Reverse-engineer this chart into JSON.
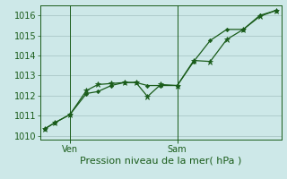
{
  "xlabel": "Pression niveau de la mer( hPa )",
  "background_color": "#cde8e8",
  "grid_color": "#b0cccc",
  "line_color": "#1a5c1a",
  "ylim": [
    1009.8,
    1016.5
  ],
  "ytick_values": [
    1010,
    1011,
    1012,
    1013,
    1014,
    1015,
    1016
  ],
  "xlim": [
    -0.3,
    14.3
  ],
  "xtick_positions": [
    1.5,
    8.0
  ],
  "xtick_labels": [
    "Ven",
    "Sam"
  ],
  "vline_positions": [
    1.5,
    8.0
  ],
  "series1_x": [
    0.0,
    0.6,
    1.5,
    2.5,
    3.2,
    4.0,
    4.8,
    5.5,
    6.2,
    7.0,
    8.0,
    9.0,
    10.0,
    11.0,
    12.0,
    13.0,
    14.0
  ],
  "series1_y": [
    1010.35,
    1010.65,
    1011.05,
    1012.25,
    1012.55,
    1012.6,
    1012.65,
    1012.65,
    1011.95,
    1012.55,
    1012.5,
    1013.75,
    1013.7,
    1014.8,
    1015.3,
    1015.95,
    1016.25
  ],
  "series2_x": [
    0.0,
    0.6,
    1.5,
    2.5,
    3.2,
    4.0,
    4.8,
    5.5,
    6.2,
    7.0,
    8.0,
    9.0,
    10.0,
    11.0,
    12.0,
    13.0,
    14.0
  ],
  "series2_y": [
    1010.35,
    1010.65,
    1011.05,
    1012.1,
    1012.2,
    1012.5,
    1012.65,
    1012.65,
    1012.5,
    1012.5,
    1012.5,
    1013.7,
    1014.75,
    1015.3,
    1015.3,
    1016.0,
    1016.25
  ],
  "xlabel_fontsize": 8,
  "tick_fontsize": 7
}
